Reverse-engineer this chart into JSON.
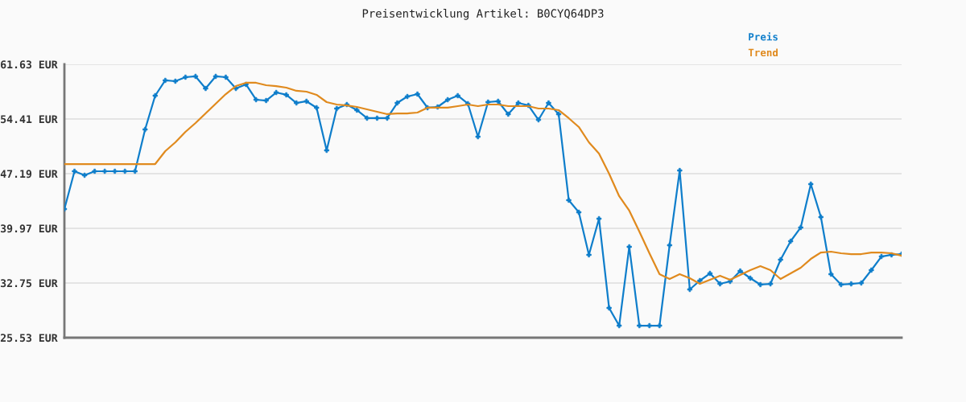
{
  "chart_data": {
    "type": "line",
    "title": "Preisentwicklung Artikel: B0CYQ64DP3",
    "categories": [
      null,
      null,
      null,
      null,
      null,
      null,
      null,
      null,
      null,
      null,
      null,
      null,
      null,
      null,
      null,
      null,
      null,
      null,
      null,
      null,
      null,
      null,
      null,
      null,
      null,
      null,
      null,
      null,
      null,
      null,
      null,
      null,
      null,
      null,
      null,
      null,
      null,
      null,
      null,
      null,
      null,
      null,
      null,
      null,
      null,
      null,
      null,
      null,
      null,
      null,
      null,
      null,
      null,
      null,
      null,
      null,
      null,
      null,
      null,
      null,
      null,
      null,
      null,
      null,
      null,
      null,
      null,
      null,
      null,
      null,
      null,
      null,
      null,
      null,
      null,
      null,
      null,
      null,
      null,
      null,
      null,
      null,
      null,
      null
    ],
    "series": [
      {
        "name": "Preis",
        "color": "#0f7ecb",
        "marker": "cross",
        "values": [
          42.52,
          47.51,
          46.98,
          47.51,
          47.51,
          47.51,
          47.51,
          47.51,
          53.03,
          57.49,
          59.51,
          59.4,
          59.93,
          60.04,
          58.44,
          60.04,
          59.93,
          58.44,
          58.98,
          56.96,
          56.85,
          57.91,
          57.6,
          56.53,
          56.75,
          55.9,
          50.27,
          55.79,
          56.32,
          55.58,
          54.52,
          54.52,
          54.52,
          56.53,
          57.38,
          57.7,
          55.9,
          56.0,
          56.96,
          57.49,
          56.43,
          52.07,
          56.64,
          56.75,
          55.05,
          56.53,
          56.21,
          54.3,
          56.53,
          55.05,
          43.69,
          42.09,
          36.47,
          41.24,
          29.46,
          27.12,
          37.53,
          27.12,
          27.12,
          27.12,
          37.74,
          47.61,
          31.9,
          33.07,
          34.02,
          32.64,
          32.96,
          34.34,
          33.39,
          32.54,
          32.64,
          35.83,
          38.27,
          40.08,
          45.81,
          41.46,
          33.92,
          32.54,
          32.64,
          32.75,
          34.45,
          36.25,
          36.47,
          36.57
        ]
      },
      {
        "name": "Trend",
        "color": "#e08a1e",
        "marker": "none",
        "values": [
          48.46,
          48.46,
          48.46,
          48.46,
          48.46,
          48.46,
          48.46,
          48.46,
          48.46,
          48.46,
          50.16,
          51.33,
          52.71,
          53.88,
          55.15,
          56.43,
          57.7,
          58.76,
          59.19,
          59.19,
          58.87,
          58.76,
          58.55,
          58.13,
          58.02,
          57.6,
          56.64,
          56.32,
          56.21,
          56.0,
          55.68,
          55.37,
          55.05,
          55.15,
          55.15,
          55.26,
          55.9,
          55.9,
          55.9,
          56.11,
          56.32,
          56.11,
          56.32,
          56.32,
          56.11,
          56.11,
          56.11,
          55.79,
          55.79,
          55.58,
          54.52,
          53.35,
          51.33,
          49.84,
          47.19,
          44.22,
          42.31,
          39.54,
          36.68,
          33.92,
          33.28,
          33.92,
          33.39,
          32.64,
          33.18,
          33.71,
          33.18,
          33.81,
          34.45,
          34.98,
          34.45,
          33.28,
          34.02,
          34.77,
          35.93,
          36.78,
          36.89,
          36.68,
          36.57,
          36.57,
          36.78,
          36.78,
          36.68,
          36.36
        ]
      }
    ],
    "ylim": [
      25.53,
      61.63
    ],
    "yticks": [
      {
        "value": 25.53,
        "label": "25.53 EUR"
      },
      {
        "value": 32.75,
        "label": "32.75 EUR"
      },
      {
        "value": 39.97,
        "label": "39.97 EUR"
      },
      {
        "value": 47.19,
        "label": "47.19 EUR"
      },
      {
        "value": 54.41,
        "label": "54.41 EUR"
      },
      {
        "value": 61.63,
        "label": "61.63 EUR"
      }
    ],
    "grid": "y",
    "legend": "top right",
    "tick_labels": "y",
    "line_style": "solid"
  }
}
